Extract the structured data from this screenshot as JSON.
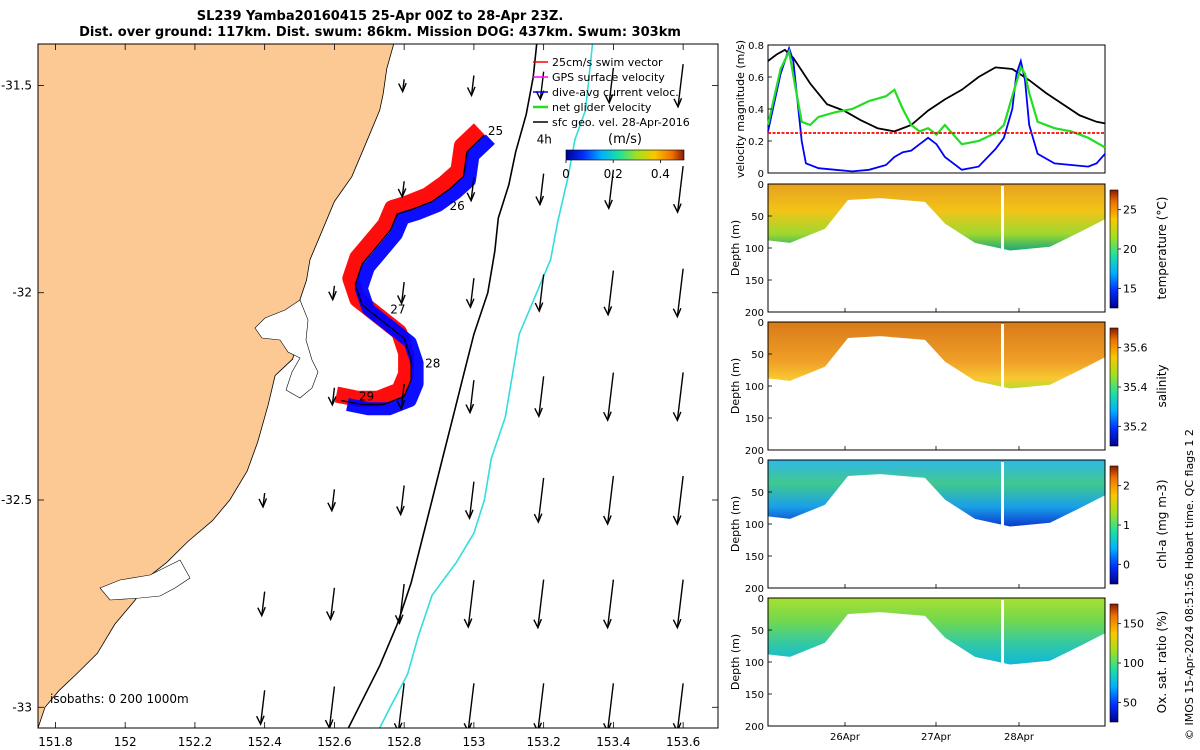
{
  "figure": {
    "title_line1": "SL239 Yamba20160415 25-Apr 00Z to 28-Apr 23Z.",
    "title_line2": "Dist. over ground: 117km. Dist. swum: 86km. Mission DOG: 437km. Swum: 303km",
    "credit": "© IMOS 15-Apr-2024 08:51:56 Hobart time. QC flags 1  2"
  },
  "colors": {
    "land": "#fcc995",
    "swim_vector": "#ff0000",
    "gps_velocity": "#ff00ff",
    "dive_avg_current": "#0000ff",
    "net_glider": "#22dd22",
    "sfc_geo": "#000000",
    "isobath_200": "#000000",
    "isobath_1000": "#33dddd"
  },
  "chart_data": [
    {
      "type": "map",
      "xlim": [
        151.75,
        153.7
      ],
      "ylim": [
        -33.05,
        -31.4
      ],
      "xticks": [
        151.8,
        152,
        152.2,
        152.4,
        152.6,
        152.8,
        153,
        153.2,
        153.4,
        153.6
      ],
      "xtick_labels": [
        "151.8",
        "152",
        "152.2",
        "152.4",
        "152.6",
        "152.8",
        "153",
        "153.2",
        "153.4",
        "153.6"
      ],
      "yticks": [
        -31.5,
        -32,
        -32.5,
        -33
      ],
      "ytick_labels": [
        "-31.5",
        "-32",
        "-32.5",
        "-33"
      ],
      "legend": {
        "location": "top-right",
        "entries": [
          "25cm/s swim vector",
          "GPS surface velocity",
          "dive-avg current veloc.",
          "net glider velocity",
          "sfc geo. vel. 28-Apr-2016"
        ]
      },
      "colorbar": {
        "label": "(m/s)",
        "range": [
          0,
          0.5
        ],
        "ticks": [
          0,
          0.2,
          0.4
        ],
        "tick_labels": [
          "0",
          "0.2",
          "0.4"
        ]
      },
      "isobaths_label": "isobaths: 0   200  1000m",
      "track": [
        [
          153.03,
          -31.62
        ],
        [
          152.98,
          -31.66
        ],
        [
          152.97,
          -31.72
        ],
        [
          152.93,
          -31.75
        ],
        [
          152.88,
          -31.78
        ],
        [
          152.82,
          -31.8
        ],
        [
          152.78,
          -31.81
        ],
        [
          152.76,
          -31.85
        ],
        [
          152.72,
          -31.89
        ],
        [
          152.68,
          -31.93
        ],
        [
          152.66,
          -31.98
        ],
        [
          152.68,
          -32.03
        ],
        [
          152.74,
          -32.07
        ],
        [
          152.8,
          -32.11
        ],
        [
          152.82,
          -32.16
        ],
        [
          152.82,
          -32.21
        ],
        [
          152.8,
          -32.25
        ],
        [
          152.74,
          -32.27
        ],
        [
          152.68,
          -32.27
        ],
        [
          152.62,
          -32.26
        ]
      ],
      "day_labels": [
        {
          "text": "25",
          "lon": 153.04,
          "lat": -31.62
        },
        {
          "text": "4h",
          "lon": 153.18,
          "lat": -31.64
        },
        {
          "text": "26",
          "lon": 152.93,
          "lat": -31.8
        },
        {
          "text": "27",
          "lon": 152.76,
          "lat": -32.05
        },
        {
          "text": "28",
          "lon": 152.86,
          "lat": -32.18
        },
        {
          "text": "29",
          "lon": 152.67,
          "lat": -32.26
        }
      ],
      "coast": [
        [
          152.77,
          -31.4
        ],
        [
          152.75,
          -31.46
        ],
        [
          152.74,
          -31.52
        ],
        [
          152.73,
          -31.56
        ],
        [
          152.7,
          -31.62
        ],
        [
          152.68,
          -31.66
        ],
        [
          152.65,
          -31.72
        ],
        [
          152.6,
          -31.78
        ],
        [
          152.56,
          -31.86
        ],
        [
          152.53,
          -31.92
        ],
        [
          152.52,
          -31.97
        ],
        [
          152.5,
          -32.02
        ],
        [
          152.5,
          -32.1
        ],
        [
          152.48,
          -32.16
        ],
        [
          152.43,
          -32.2
        ],
        [
          152.41,
          -32.27
        ],
        [
          152.38,
          -32.36
        ],
        [
          152.35,
          -32.43
        ],
        [
          152.3,
          -32.5
        ],
        [
          152.25,
          -32.55
        ],
        [
          152.18,
          -32.6
        ],
        [
          152.12,
          -32.65
        ],
        [
          152.06,
          -32.69
        ],
        [
          152.03,
          -32.74
        ],
        [
          151.97,
          -32.8
        ],
        [
          151.92,
          -32.87
        ],
        [
          151.86,
          -32.92
        ],
        [
          151.81,
          -32.96
        ],
        [
          151.77,
          -33.0
        ],
        [
          151.75,
          -33.05
        ]
      ],
      "isobath_200": [
        [
          153.18,
          -31.4
        ],
        [
          153.17,
          -31.48
        ],
        [
          153.15,
          -31.57
        ],
        [
          153.12,
          -31.66
        ],
        [
          153.1,
          -31.74
        ],
        [
          153.07,
          -31.82
        ],
        [
          153.06,
          -31.9
        ],
        [
          153.04,
          -32.0
        ],
        [
          153.0,
          -32.1
        ],
        [
          152.97,
          -32.2
        ],
        [
          152.94,
          -32.3
        ],
        [
          152.91,
          -32.4
        ],
        [
          152.88,
          -32.5
        ],
        [
          152.85,
          -32.6
        ],
        [
          152.82,
          -32.7
        ],
        [
          152.78,
          -32.8
        ],
        [
          152.73,
          -32.9
        ],
        [
          152.67,
          -33.0
        ],
        [
          152.64,
          -33.05
        ]
      ],
      "isobath_1000": [
        [
          153.34,
          -31.4
        ],
        [
          153.33,
          -31.48
        ],
        [
          153.32,
          -31.56
        ],
        [
          153.29,
          -31.63
        ],
        [
          153.27,
          -31.72
        ],
        [
          153.24,
          -31.83
        ],
        [
          153.22,
          -31.92
        ],
        [
          153.17,
          -32.02
        ],
        [
          153.13,
          -32.1
        ],
        [
          153.11,
          -32.2
        ],
        [
          153.09,
          -32.3
        ],
        [
          153.05,
          -32.4
        ],
        [
          153.03,
          -32.5
        ],
        [
          153.0,
          -32.58
        ],
        [
          152.95,
          -32.65
        ],
        [
          152.88,
          -32.73
        ],
        [
          152.84,
          -32.83
        ],
        [
          152.81,
          -32.92
        ],
        [
          152.76,
          -33.0
        ],
        [
          152.73,
          -33.05
        ]
      ]
    },
    {
      "type": "line",
      "ylabel": "velocity magnitude (m/s)",
      "xlim": [
        0,
        4
      ],
      "ylim": [
        0,
        0.8
      ],
      "yticks": [
        0,
        0.2,
        0.4,
        0.6,
        0.8
      ],
      "ytick_labels": [
        "0",
        "0.2",
        "0.4",
        "0.6",
        "0.8"
      ],
      "series": [
        {
          "color": "#000000",
          "x": [
            0,
            0.1,
            0.2,
            0.3,
            0.5,
            0.7,
            0.9,
            1.1,
            1.3,
            1.5,
            1.7,
            1.9,
            2.1,
            2.3,
            2.5,
            2.7,
            2.9,
            3.1,
            3.3,
            3.5,
            3.7,
            3.9,
            4.0
          ],
          "values": [
            0.7,
            0.74,
            0.77,
            0.72,
            0.56,
            0.43,
            0.39,
            0.33,
            0.28,
            0.26,
            0.3,
            0.39,
            0.46,
            0.52,
            0.6,
            0.66,
            0.65,
            0.58,
            0.5,
            0.43,
            0.36,
            0.32,
            0.31
          ]
        },
        {
          "color": "#0000ff",
          "x": [
            0,
            0.15,
            0.25,
            0.3,
            0.35,
            0.4,
            0.45,
            0.6,
            0.8,
            1.0,
            1.2,
            1.4,
            1.5,
            1.6,
            1.7,
            1.8,
            1.9,
            2.0,
            2.1,
            2.3,
            2.5,
            2.7,
            2.8,
            2.9,
            2.95,
            3.0,
            3.05,
            3.1,
            3.2,
            3.4,
            3.6,
            3.8,
            3.9,
            4.0
          ],
          "values": [
            0.26,
            0.62,
            0.78,
            0.7,
            0.45,
            0.2,
            0.06,
            0.03,
            0.02,
            0.01,
            0.02,
            0.05,
            0.1,
            0.13,
            0.14,
            0.18,
            0.22,
            0.18,
            0.1,
            0.02,
            0.04,
            0.15,
            0.22,
            0.4,
            0.62,
            0.7,
            0.58,
            0.3,
            0.12,
            0.06,
            0.05,
            0.04,
            0.06,
            0.12
          ]
        },
        {
          "color": "#22dd22",
          "x": [
            0,
            0.15,
            0.25,
            0.32,
            0.4,
            0.5,
            0.6,
            0.8,
            1.0,
            1.2,
            1.4,
            1.5,
            1.6,
            1.7,
            1.8,
            1.9,
            2.0,
            2.1,
            2.3,
            2.5,
            2.7,
            2.8,
            2.9,
            3.0,
            3.05,
            3.1,
            3.2,
            3.4,
            3.6,
            3.8,
            4.0
          ],
          "values": [
            0.3,
            0.65,
            0.76,
            0.55,
            0.32,
            0.3,
            0.35,
            0.38,
            0.4,
            0.45,
            0.48,
            0.52,
            0.4,
            0.3,
            0.26,
            0.28,
            0.24,
            0.3,
            0.18,
            0.2,
            0.25,
            0.3,
            0.48,
            0.66,
            0.62,
            0.5,
            0.32,
            0.28,
            0.26,
            0.22,
            0.16
          ]
        },
        {
          "color": "#ff0000",
          "x": [
            0,
            4
          ],
          "values": [
            0.25,
            0.25
          ]
        }
      ]
    },
    {
      "type": "heatmap",
      "ylabel": "Depth (m)",
      "colorbar_label": "temperature (°C)",
      "ylim": [
        200,
        0
      ],
      "yticks": [
        0,
        50,
        100,
        150,
        200
      ],
      "ytick_labels": [
        "0",
        "50",
        "100",
        "150",
        "200"
      ],
      "colorbar_ticks": [
        15,
        20,
        25
      ],
      "colorbar_tick_labels": [
        "15",
        "20",
        "25"
      ]
    },
    {
      "type": "heatmap",
      "ylabel": "Depth (m)",
      "colorbar_label": "salinity",
      "ylim": [
        200,
        0
      ],
      "yticks": [
        0,
        50,
        100,
        150,
        200
      ],
      "ytick_labels": [
        "0",
        "50",
        "100",
        "150",
        "200"
      ],
      "colorbar_ticks": [
        35.2,
        35.4,
        35.6
      ],
      "colorbar_tick_labels": [
        "35.2",
        "35.4",
        "35.6"
      ]
    },
    {
      "type": "heatmap",
      "ylabel": "Depth (m)",
      "colorbar_label": "chl-a (mg m-3)",
      "ylim": [
        200,
        0
      ],
      "yticks": [
        0,
        50,
        100,
        150,
        200
      ],
      "ytick_labels": [
        "0",
        "50",
        "100",
        "150",
        "200"
      ],
      "colorbar_ticks": [
        0,
        1,
        2
      ],
      "colorbar_tick_labels": [
        "0",
        "1",
        "2"
      ]
    },
    {
      "type": "heatmap",
      "ylabel": "Depth (m)",
      "colorbar_label": "Ox. sat. ratio (%)",
      "ylim": [
        200,
        0
      ],
      "yticks": [
        0,
        50,
        100,
        150,
        200
      ],
      "ytick_labels": [
        "0",
        "50",
        "100",
        "150",
        "200"
      ],
      "colorbar_ticks": [
        50,
        100,
        150
      ],
      "colorbar_tick_labels": [
        "50",
        "100",
        "150"
      ],
      "xtick_labels": [
        "26Apr",
        "27Apr",
        "28Apr"
      ]
    }
  ]
}
